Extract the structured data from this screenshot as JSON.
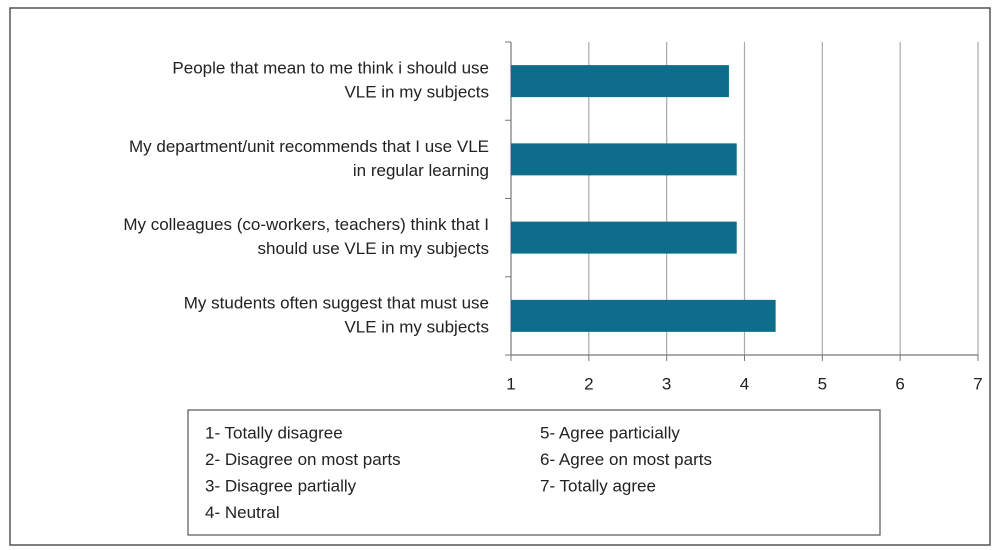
{
  "chart_data": {
    "type": "bar",
    "orientation": "horizontal",
    "categories": [
      [
        "People that mean to me think i should use",
        "VLE in my subjects"
      ],
      [
        "My department/unit recommends that I use VLE",
        "in regular learning"
      ],
      [
        "My colleagues (co-workers, teachers) think that I",
        "should use VLE in my subjects"
      ],
      [
        "My students often suggest that must use",
        "VLE in my subjects"
      ]
    ],
    "values": [
      3.8,
      3.9,
      3.9,
      4.4
    ],
    "color": "#0e6d8d",
    "xlim": [
      1,
      7
    ],
    "xticks": [
      1,
      2,
      3,
      4,
      5,
      6,
      7
    ],
    "grid": true,
    "scale_legend": [
      "1- Totally disagree",
      "2- Disagree on most parts",
      "3- Disagree partially",
      "4- Neutral",
      "5- Agree particially",
      "6- Agree on most parts",
      "7- Totally agree"
    ]
  }
}
